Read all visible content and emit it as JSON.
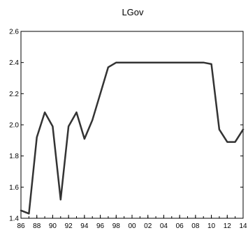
{
  "chart_data": {
    "type": "line",
    "title": "LGov",
    "xlabel": "",
    "ylabel": "",
    "xlim": [
      1986,
      2014
    ],
    "ylim": [
      1.4,
      2.6
    ],
    "y_ticks": [
      1.4,
      1.6,
      1.8,
      2.0,
      2.2,
      2.4,
      2.6
    ],
    "y_tick_labels": [
      "1.4",
      "1.6",
      "1.8",
      "2.0",
      "2.2",
      "2.4",
      "2.6"
    ],
    "x_ticks": [
      1986,
      1988,
      1990,
      1992,
      1994,
      1996,
      1998,
      2000,
      2002,
      2004,
      2006,
      2008,
      2010,
      2012,
      2014
    ],
    "x_tick_labels": [
      "86",
      "88",
      "90",
      "92",
      "94",
      "96",
      "98",
      "00",
      "02",
      "04",
      "06",
      "08",
      "10",
      "12",
      "14"
    ],
    "grid": false,
    "series": [
      {
        "color": "#333333",
        "x": [
          1986,
          1987,
          1988,
          1989,
          1990,
          1991,
          1992,
          1993,
          1994,
          1995,
          1996,
          1997,
          1998,
          1999,
          2000,
          2001,
          2002,
          2003,
          2004,
          2005,
          2006,
          2007,
          2008,
          2009,
          2010,
          2011,
          2012,
          2013,
          2014
        ],
        "y": [
          1.45,
          1.43,
          1.92,
          2.08,
          1.99,
          1.52,
          1.99,
          2.08,
          1.91,
          2.03,
          2.2,
          2.37,
          2.4,
          2.4,
          2.4,
          2.4,
          2.4,
          2.4,
          2.4,
          2.4,
          2.4,
          2.4,
          2.4,
          2.4,
          2.39,
          1.97,
          1.89,
          1.89,
          1.97
        ]
      }
    ]
  }
}
